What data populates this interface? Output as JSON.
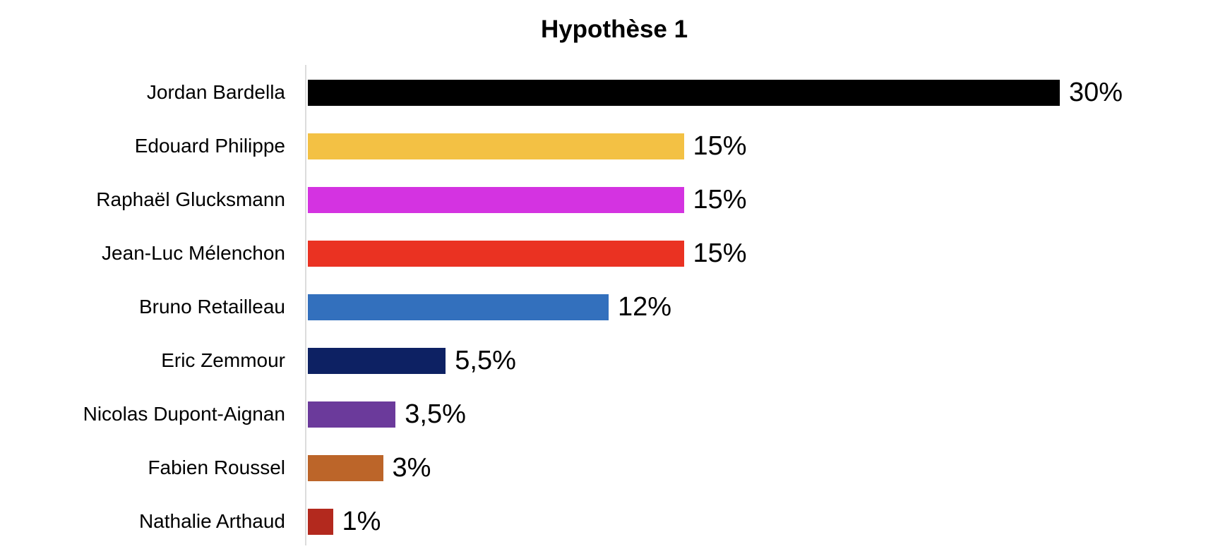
{
  "header": {
    "title": "Hypothèse 1"
  },
  "chart_data": {
    "type": "bar",
    "orientation": "horizontal",
    "title": "Hypothèse 1",
    "categories": [
      "Jordan Bardella",
      "Edouard Philippe",
      "Raphaël Glucksmann",
      "Jean-Luc Mélenchon",
      "Bruno Retailleau",
      "Eric Zemmour",
      "Nicolas Dupont-Aignan",
      "Fabien Roussel",
      "Nathalie Arthaud"
    ],
    "values": [
      30,
      15,
      15,
      15,
      12,
      5.5,
      3.5,
      3,
      1
    ],
    "value_labels": [
      "30%",
      "15%",
      "15%",
      "15%",
      "12%",
      "5,5%",
      "3,5%",
      "3%",
      "1%"
    ],
    "bar_colors": [
      "#000000",
      "#F3C144",
      "#D433E1",
      "#EA3222",
      "#3370BD",
      "#0D2163",
      "#6B3A9B",
      "#BC6529",
      "#B3291E"
    ],
    "xlim": [
      0,
      30
    ],
    "grid": false,
    "legend": false,
    "data_label_position": "outside-end",
    "axis_line_color": "#DCDCDC",
    "text_color": "#000000",
    "background_color": "#FFFFFF"
  }
}
